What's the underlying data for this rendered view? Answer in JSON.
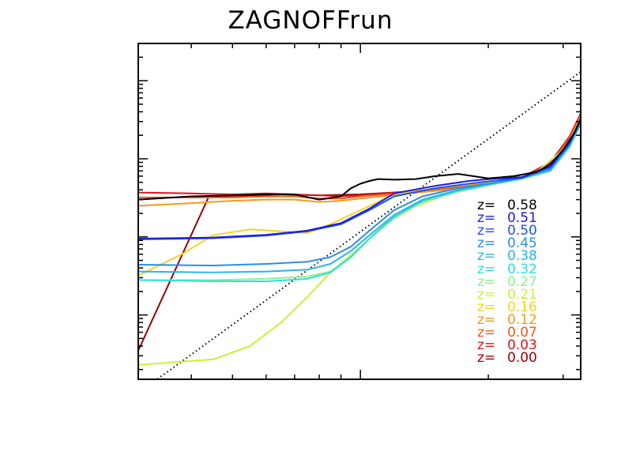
{
  "chart_data": {
    "type": "line",
    "title": "ZAGNOFFrun",
    "xlabel": "",
    "ylabel": "",
    "xscale": "log",
    "yscale": "log",
    "xlim": [
      0.3,
      3.3
    ],
    "ylim": [
      0.00015,
      3.0
    ],
    "grid": false,
    "legend_position": "bottom-right",
    "legend_prefix": "z=",
    "reference_line": {
      "style": "dotted",
      "color": "#000000",
      "x": [
        0.3,
        3.3
      ],
      "y": [
        0.0001,
        1.3
      ]
    },
    "series": [
      {
        "name": "0.58",
        "color": "#000000",
        "x": [
          0.3,
          0.4,
          0.5,
          0.6,
          0.7,
          0.8,
          0.9,
          0.95,
          1.0,
          1.05,
          1.1,
          1.2,
          1.35,
          1.5,
          1.7,
          2.0,
          2.3,
          2.6,
          2.8,
          3.0,
          3.2,
          3.3
        ],
        "y": [
          0.03,
          0.033,
          0.034,
          0.035,
          0.035,
          0.03,
          0.033,
          0.042,
          0.048,
          0.052,
          0.055,
          0.054,
          0.055,
          0.06,
          0.064,
          0.056,
          0.06,
          0.068,
          0.085,
          0.13,
          0.22,
          0.33
        ]
      },
      {
        "name": "0.51",
        "color": "#1a1ae6",
        "x": [
          0.3,
          0.45,
          0.6,
          0.75,
          0.9,
          1.05,
          1.2,
          1.5,
          1.8,
          2.1,
          2.4,
          2.8,
          3.1,
          3.3
        ],
        "y": [
          0.0095,
          0.0098,
          0.0106,
          0.012,
          0.015,
          0.023,
          0.036,
          0.045,
          0.052,
          0.056,
          0.058,
          0.08,
          0.16,
          0.32
        ]
      },
      {
        "name": "0.50",
        "color": "#1f50ec",
        "x": [
          0.3,
          0.45,
          0.6,
          0.75,
          0.9,
          1.05,
          1.2,
          1.5,
          1.8,
          2.1,
          2.4,
          2.8,
          3.1,
          3.3
        ],
        "y": [
          0.0093,
          0.0096,
          0.0104,
          0.0118,
          0.0145,
          0.022,
          0.033,
          0.042,
          0.048,
          0.053,
          0.057,
          0.078,
          0.155,
          0.31
        ]
      },
      {
        "name": "0.45",
        "color": "#2a8ee8",
        "x": [
          0.3,
          0.45,
          0.6,
          0.75,
          0.85,
          0.95,
          1.05,
          1.2,
          1.4,
          1.7,
          2.1,
          2.4,
          2.8,
          3.1,
          3.3
        ],
        "y": [
          0.0044,
          0.0043,
          0.0045,
          0.0048,
          0.0055,
          0.0075,
          0.012,
          0.022,
          0.033,
          0.042,
          0.05,
          0.057,
          0.075,
          0.15,
          0.3
        ]
      },
      {
        "name": "0.38",
        "color": "#2ab4ec",
        "x": [
          0.3,
          0.45,
          0.6,
          0.75,
          0.85,
          0.95,
          1.05,
          1.2,
          1.4,
          1.7,
          2.1,
          2.4,
          2.8,
          3.1,
          3.3
        ],
        "y": [
          0.0036,
          0.0035,
          0.0036,
          0.0038,
          0.0045,
          0.0066,
          0.0105,
          0.019,
          0.03,
          0.04,
          0.05,
          0.057,
          0.072,
          0.145,
          0.29
        ]
      },
      {
        "name": "0.32",
        "color": "#2ee0dc",
        "x": [
          0.3,
          0.45,
          0.6,
          0.75,
          0.85,
          0.95,
          1.05,
          1.2,
          1.4,
          1.7,
          2.1,
          2.4,
          2.8,
          3.1,
          3.3
        ],
        "y": [
          0.0028,
          0.0027,
          0.0027,
          0.0029,
          0.0035,
          0.0055,
          0.0095,
          0.018,
          0.029,
          0.039,
          0.049,
          0.056,
          0.07,
          0.14,
          0.28
        ]
      },
      {
        "name": "0.27",
        "color": "#8ef08e",
        "x": [
          0.3,
          0.45,
          0.6,
          0.75,
          0.85,
          0.95,
          1.05,
          1.2,
          1.4,
          1.7,
          2.1,
          2.4,
          2.8,
          3.1,
          3.3
        ],
        "y": [
          0.0028,
          0.0028,
          0.0029,
          0.0031,
          0.0036,
          0.0056,
          0.0095,
          0.0175,
          0.028,
          0.038,
          0.048,
          0.055,
          0.07,
          0.14,
          0.28
        ]
      },
      {
        "name": "0.21",
        "color": "#ccf03a",
        "x": [
          0.3,
          0.45,
          0.55,
          0.65,
          0.75,
          0.85,
          1.0,
          1.15,
          1.35,
          1.6,
          1.9,
          2.2,
          2.6,
          3.0,
          3.3
        ],
        "y": [
          0.00023,
          0.00027,
          0.0004,
          0.0008,
          0.0017,
          0.0035,
          0.0075,
          0.015,
          0.025,
          0.035,
          0.045,
          0.054,
          0.068,
          0.13,
          0.27
        ]
      },
      {
        "name": "0.16",
        "color": "#f4d21e",
        "x": [
          0.3,
          0.38,
          0.45,
          0.55,
          0.65,
          0.75,
          0.85,
          1.0,
          1.2,
          1.5,
          1.8,
          2.1,
          2.5,
          2.8,
          3.1,
          3.3
        ],
        "y": [
          0.0032,
          0.006,
          0.0105,
          0.0125,
          0.0118,
          0.0112,
          0.0145,
          0.022,
          0.035,
          0.042,
          0.047,
          0.052,
          0.06,
          0.08,
          0.16,
          0.32
        ]
      },
      {
        "name": "0.12",
        "color": "#f49a1e",
        "x": [
          0.3,
          0.4,
          0.5,
          0.6,
          0.7,
          0.8,
          0.9,
          1.0,
          1.3,
          1.6,
          2.0,
          2.4,
          2.8,
          3.1,
          3.3
        ],
        "y": [
          0.025,
          0.027,
          0.029,
          0.03,
          0.03,
          0.028,
          0.029,
          0.031,
          0.036,
          0.04,
          0.047,
          0.055,
          0.08,
          0.17,
          0.34
        ]
      },
      {
        "name": "0.07",
        "color": "#f05a14",
        "x": [
          0.3,
          0.4,
          0.5,
          0.6,
          0.7,
          0.8,
          0.9,
          1.0,
          1.3,
          1.6,
          2.0,
          2.4,
          2.8,
          3.1,
          3.3
        ],
        "y": [
          0.032,
          0.032,
          0.032,
          0.033,
          0.033,
          0.031,
          0.031,
          0.033,
          0.037,
          0.042,
          0.048,
          0.056,
          0.085,
          0.18,
          0.36
        ]
      },
      {
        "name": "0.03",
        "color": "#e0141e",
        "x": [
          0.3,
          0.4,
          0.5,
          0.6,
          0.7,
          0.8,
          0.9,
          1.0,
          1.3,
          1.6,
          2.0,
          2.4,
          2.8,
          3.1,
          3.3
        ],
        "y": [
          0.037,
          0.036,
          0.035,
          0.036,
          0.035,
          0.034,
          0.033,
          0.034,
          0.038,
          0.043,
          0.049,
          0.058,
          0.09,
          0.19,
          0.38
        ]
      },
      {
        "name": "0.00",
        "color": "#960000",
        "x": [
          0.3,
          0.44,
          0.55,
          0.65,
          0.8,
          1.0,
          1.3,
          1.6,
          2.0,
          2.4,
          2.8,
          3.1,
          3.3
        ],
        "y": [
          0.00035,
          0.033,
          0.034,
          0.035,
          0.034,
          0.035,
          0.038,
          0.042,
          0.048,
          0.056,
          0.085,
          0.18,
          0.37
        ]
      }
    ]
  }
}
